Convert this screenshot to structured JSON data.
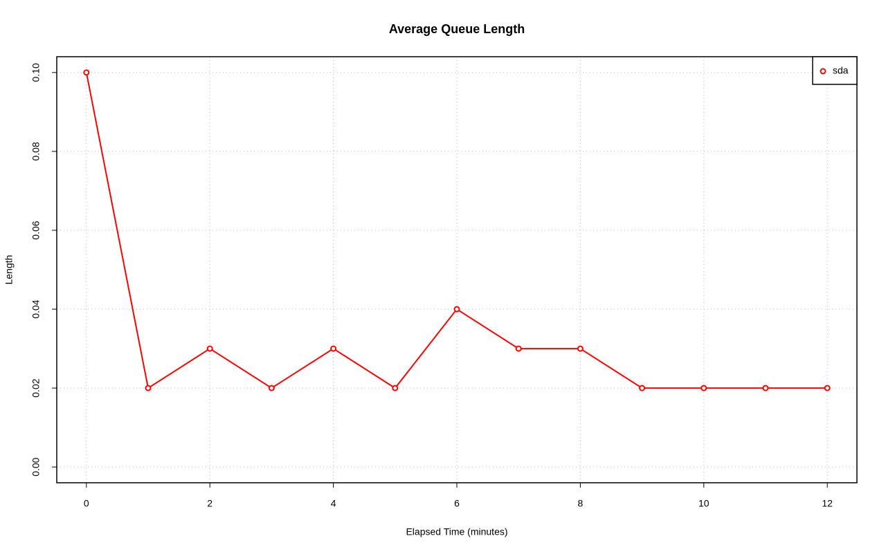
{
  "chart_data": {
    "type": "line",
    "title": "Average Queue Length",
    "x_label": "Elapsed Time (minutes)",
    "y_label": "Length",
    "x": [
      0,
      1,
      2,
      3,
      4,
      5,
      6,
      7,
      8,
      9,
      10,
      11,
      12
    ],
    "series": [
      {
        "name": "sda",
        "color": "#ff0000",
        "values": [
          0.1,
          0.02,
          0.03,
          0.02,
          0.03,
          0.02,
          0.04,
          0.03,
          0.03,
          0.02,
          0.02,
          0.02,
          0.02
        ]
      }
    ],
    "xlim": [
      -0.48,
      12.48
    ],
    "ylim": [
      -0.004,
      0.104
    ],
    "xticks": [
      0,
      2,
      4,
      6,
      8,
      10,
      12
    ],
    "yticks": [
      {
        "value": 0,
        "label": "0.00"
      },
      0.02,
      0.04,
      0.06,
      0.08,
      {
        "value": 0.1,
        "label": "0.10"
      }
    ],
    "grid": true,
    "legend": "top-right"
  }
}
